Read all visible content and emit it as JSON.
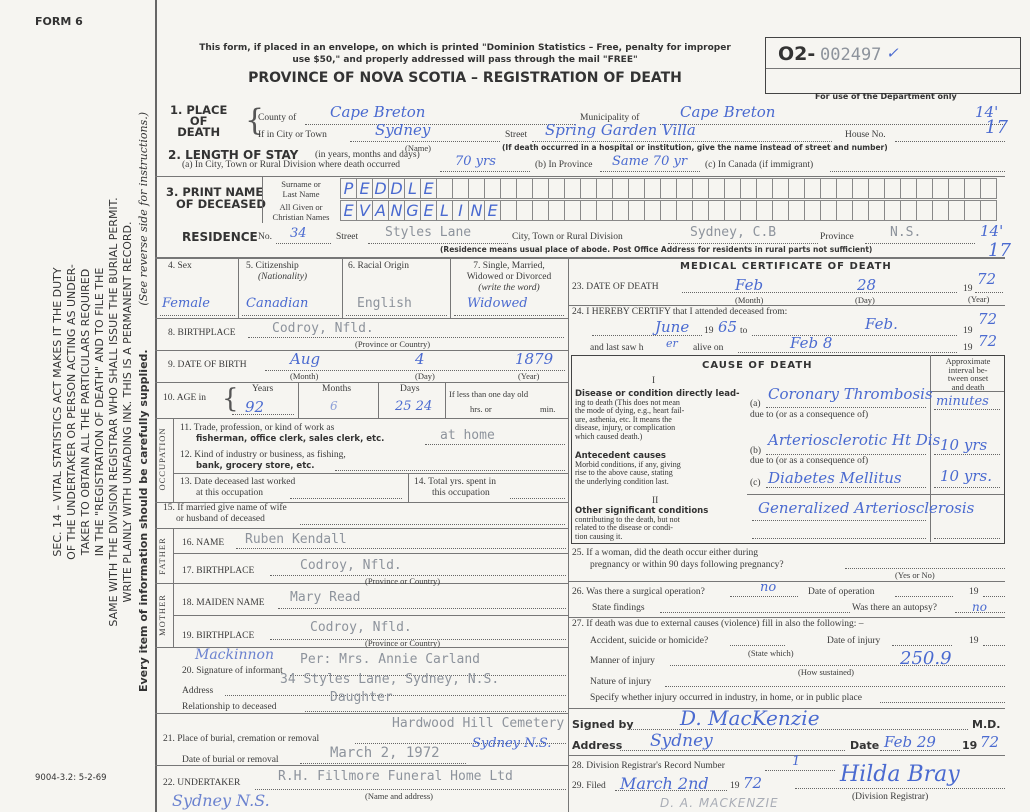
{
  "form_number": "FORM 6",
  "print_code": "9004-3.2: 5-2-69",
  "header": {
    "notice_line1": "This form, if placed in an envelope, on which is printed \"Dominion Statistics – Free, penalty for improper",
    "notice_line2": "use $50,\" and properly addressed will pass through the mail \"FREE\"",
    "title": "PROVINCE OF NOVA SCOTIA – REGISTRATION OF DEATH",
    "registration_prefix": "O2-",
    "registration_number": "002497",
    "registration_check": "✓",
    "department_only": "For use of the Department only"
  },
  "margin": {
    "instructions": [
      "SEC. 14 – VITAL STATISTICS ACT MAKES IT THE DUTY",
      "OF THE UNDERTAKER OR PERSON ACTING AS UNDER-",
      "TAKER TO OBTAIN ALL THE PARTICULARS REQUIRED",
      "IN THE \"REGISTRATION OF DEATH\" AND TO FILE THE",
      "SAME WITH THE DIVISION REGISTRAR WHO SHALL ISSUE THE BURIAL PERMIT.",
      "WRITE PLAINLY WITH UNFADING INK. THIS IS A PERMANENT RECORD."
    ],
    "every_item": "Every item of information should be carefully supplied.",
    "see_reverse": "(See reverse side for instructions.)"
  },
  "place_of_death": {
    "label_num": "1. PLACE",
    "label_of": "OF",
    "label_death": "DEATH",
    "county_label": "County of",
    "county": "Cape Breton",
    "municipality_label": "Municipality of",
    "municipality": "Cape Breton",
    "city_label": "If in City or Town",
    "city": "Sydney",
    "name_hint": "(Name)",
    "street_label": "Street",
    "street": "Spring Garden Villa",
    "house_label": "House No.",
    "hospital_note": "(If death occurred in a hospital or institution, give the name instead of street and number)",
    "dept_code1": "14'",
    "dept_code2": "17"
  },
  "length_of_stay": {
    "label": "2. LENGTH OF STAY",
    "label_hint": "(in years, months and days)",
    "city_label": "(a) In City, Town or Rural Division where death occurred",
    "city_value": "70 yrs",
    "province_label": "(b) In Province",
    "province_value": "Same 70 yr",
    "canada_label": "(c) In Canada (if immigrant)"
  },
  "name": {
    "label1": "3. PRINT NAME",
    "label2": "OF DECEASED",
    "surname_label1": "Surname or",
    "surname_label2": "Last Name",
    "given_label1": "All Given or",
    "given_label2": "Christian Names",
    "surname": "PEDDLE",
    "given": "EVANGELINE"
  },
  "residence": {
    "label": "RESIDENCE",
    "no_label": "No.",
    "no": "34",
    "street_label": "Street",
    "street": "Styles Lane",
    "city_label": "City, Town or Rural Division",
    "city": "Sydney, C.B",
    "province_label": "Province",
    "province": "N.S.",
    "note": "(Residence means usual place of abode. Post Office Address for residents in rural parts not sufficient)",
    "dept_code1": "14'",
    "dept_code2": "17"
  },
  "personal": {
    "sex_label": "4. Sex",
    "sex": "Female",
    "citizenship_label": "5. Citizenship",
    "citizenship_hint": "(Nationality)",
    "citizenship": "Canadian",
    "racial_label": "6. Racial Origin",
    "racial": "English",
    "marital_label1": "7. Single, Married,",
    "marital_label2": "Widowed or Divorced",
    "marital_hint": "(write the word)",
    "marital": "Widowed",
    "birthplace_label": "8. BIRTHPLACE",
    "birthplace": "Codroy, Nfld.",
    "province_hint": "(Province or Country)",
    "dob_label": "9. DATE OF BIRTH",
    "dob_month": "Aug",
    "dob_day": "4",
    "dob_year": "1879",
    "month_hint": "(Month)",
    "day_hint": "(Day)",
    "year_hint": "(Year)",
    "age_label": "10. AGE in",
    "years_label": "Years",
    "years": "92",
    "months_label": "Months",
    "months": "6",
    "days_label": "Days",
    "days": "25 24",
    "less_day_label": "If less than one day old",
    "hrs_label": "hrs. or",
    "min_label": "min."
  },
  "occupation": {
    "side_label": "OCCUPATION",
    "q11a": "11. Trade, profession, or kind of work as",
    "q11b": "fisherman, office clerk, sales clerk, etc.",
    "q11_value": "at home",
    "q12a": "12. Kind of industry or business, as fishing,",
    "q12b": "bank, grocery store, etc.",
    "q13a": "13. Date deceased last worked",
    "q13b": "at this occupation",
    "q14a": "14. Total yrs. spent in",
    "q14b": "this occupation",
    "q15a": "15. If married give name of wife",
    "q15b": "or husband of deceased"
  },
  "father": {
    "side_label": "FATHER",
    "name_label": "16. NAME",
    "name": "Ruben Kendall",
    "birthplace_label": "17. BIRTHPLACE",
    "birthplace": "Codroy, Nfld."
  },
  "mother": {
    "side_label": "MOTHER",
    "maiden_label": "18. MAIDEN NAME",
    "maiden": "Mary Read",
    "birthplace_label": "19. BIRTHPLACE",
    "birthplace": "Codroy, Nfld."
  },
  "informant": {
    "signature_label": "20. Signature of informant",
    "signature": "Mackinnon",
    "name": "Per: Mrs. Annie Carland",
    "address_label": "Address",
    "address": "34 Styles Lane, Sydney, N.S.",
    "relationship_label": "Relationship to deceased",
    "relationship": "Daughter"
  },
  "burial": {
    "place_label": "21. Place of burial, cremation or removal",
    "place": "Hardwood Hill Cemetery",
    "place_hw": "Sydney N.S.",
    "date_label": "Date of burial or removal",
    "date": "March 2, 1972"
  },
  "undertaker": {
    "label": "22. UNDERTAKER",
    "name": "R.H. Fillmore Funeral Home Ltd",
    "hint": "(Name and address)",
    "address_hw": "Sydney N.S."
  },
  "medical": {
    "title": "MEDICAL CERTIFICATE OF DEATH",
    "dod_label": "23. DATE OF DEATH",
    "dod_month": "Feb",
    "dod_day": "28",
    "dod_year": "72",
    "century": "19",
    "month_hint": "(Month)",
    "day_hint": "(Day)",
    "year_hint": "(Year)",
    "certify_label": "24. I HEREBY CERTIFY that I attended deceased from:",
    "from_month": "June",
    "from_year": "65",
    "to_label": "to",
    "to_month": "Feb.",
    "to_year": "72",
    "last_saw_label": "and last saw h",
    "last_saw_pronoun": "er",
    "alive_on_label": "alive on",
    "last_saw_date": "Feb 8",
    "last_saw_year": "72"
  },
  "cause": {
    "title": "CAUSE OF DEATH",
    "interval_label": [
      "Approximate",
      "interval be-",
      "tween onset",
      "and death"
    ],
    "part1": "I",
    "direct_bold": "Disease or condition directly lead-",
    "direct_text": [
      "ing to death (This does not mean",
      "the mode of dying, e.g., heart fail-",
      "ure, asthenia, etc. It means the",
      "disease, injury, or complication",
      "which caused death.)"
    ],
    "antecedent_bold": "Antecedent causes",
    "antecedent_text": [
      "Morbid conditions, if any, giving",
      "rise to the above cause, stating",
      "the underlying condition last."
    ],
    "a_label": "(a)",
    "a_value": "Coronary Thrombosis",
    "a_interval": "minutes",
    "due_to": "due to (or as a consequence of)",
    "b_label": "(b)",
    "b_value": "Arteriosclerotic Ht Dis",
    "b_interval": "10 yrs",
    "c_label": "(c)",
    "c_value": "Diabetes Mellitus",
    "c_interval": "10 yrs.",
    "part2": "II",
    "other_bold": "Other significant conditions",
    "other_text": [
      "contributing to the death, but not",
      "related to the disease or condi-",
      "tion causing it."
    ],
    "other_value": "Generalized Arteriosclerosis"
  },
  "questions": {
    "q25a": "25. If a woman, did the death occur either during",
    "q25b": "pregnancy or within 90 days following pregnancy?",
    "yes_no": "(Yes or No)",
    "q26": "26. Was there a surgical operation?",
    "q26_value": "no",
    "op_date_label": "Date of operation",
    "century": "19",
    "findings_label": "State findings",
    "autopsy_label": "Was there an autopsy?",
    "autopsy_value": "no",
    "q27": "27. If death was due to external causes (violence) fill in also the following: –",
    "accident_label": "Accident, suicide or homicide?",
    "state_which": "(State which)",
    "injury_date_label": "Date of injury",
    "manner_label": "Manner of injury",
    "manner_code": "250.9",
    "how_sustained": "(How sustained)",
    "nature_label": "Nature of injury",
    "specify_label": "Specify whether injury occurred in industry, in home, or in public place"
  },
  "signature": {
    "signed_label": "Signed by",
    "signed": "D. MacKenzie",
    "md": "M.D.",
    "address_label": "Address",
    "address": "Sydney",
    "date_label": "Date",
    "date": "Feb 29",
    "century": "19",
    "year": "72"
  },
  "registrar": {
    "record_label": "28. Division Registrar's Record Number",
    "record": "1",
    "filed_label": "29. Filed",
    "filed": "March 2nd",
    "century": "19",
    "filed_year": "72",
    "registrar_signature": "Hilda Bray",
    "registrar_hint": "(Division Registrar)",
    "stamp": "D. A. MACKENZIE"
  }
}
